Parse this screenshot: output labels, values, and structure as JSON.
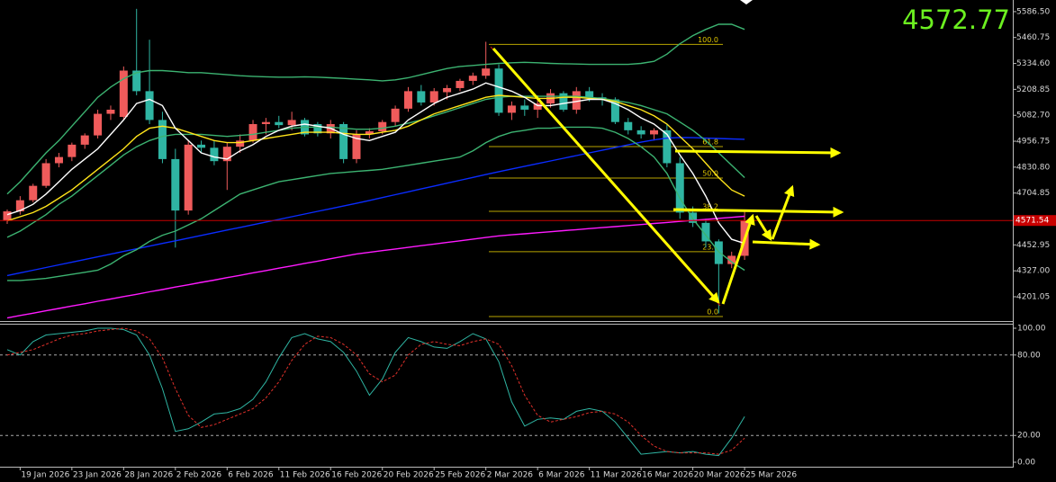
{
  "chart_data": {
    "type": "candlestick",
    "categories": [
      null,
      "19 Jan 2026",
      null,
      null,
      null,
      "23 Jan 2026",
      null,
      null,
      null,
      "28 Jan 2026",
      null,
      null,
      null,
      "2 Feb 2026",
      null,
      null,
      null,
      "6 Feb 2026",
      null,
      null,
      null,
      "11 Feb 2026",
      null,
      null,
      null,
      "16 Feb 2026",
      null,
      null,
      null,
      "20 Feb 2026",
      null,
      null,
      null,
      "25 Feb 2026",
      null,
      null,
      null,
      "2 Mar 2026",
      null,
      null,
      null,
      "6 Mar 2026",
      null,
      null,
      null,
      "11 Mar 2026",
      null,
      null,
      null,
      "16 Mar 2026",
      null,
      null,
      null,
      "20 Mar 2026",
      null,
      null,
      null,
      "25 Mar 2026"
    ],
    "open": [
      4572,
      4616,
      4670,
      4740,
      4850,
      4880,
      4940,
      4985,
      5090,
      5075,
      5300,
      5200,
      5060,
      4870,
      4620,
      4940,
      4925,
      4860,
      4930,
      4960,
      5040,
      5050,
      5035,
      5060,
      5040,
      4995,
      5040,
      4870,
      4990,
      5005,
      5050,
      5115,
      5200,
      5145,
      5195,
      5215,
      5250,
      5275,
      5310,
      5095,
      5130,
      5110,
      5140,
      5190,
      5110,
      5200,
      5170,
      5160,
      5050,
      5010,
      4990,
      5010,
      4850,
      4610,
      4560,
      4470,
      4360,
      4400
    ],
    "high": [
      4625,
      4690,
      4750,
      4870,
      4900,
      4950,
      4995,
      5110,
      5130,
      5320,
      5600,
      5450,
      5100,
      4920,
      4960,
      4960,
      4960,
      4950,
      4990,
      5060,
      5070,
      5080,
      5100,
      5070,
      5050,
      5060,
      5050,
      5010,
      5020,
      5060,
      5130,
      5220,
      5230,
      5215,
      5230,
      5260,
      5290,
      5440,
      5330,
      5150,
      5160,
      5180,
      5210,
      5200,
      5220,
      5220,
      5190,
      5170,
      5070,
      5030,
      5020,
      5040,
      4880,
      4640,
      4580,
      4480,
      4420,
      4620
    ],
    "low": [
      4555,
      4600,
      4660,
      4730,
      4830,
      4860,
      4920,
      4970,
      5060,
      5060,
      5180,
      5040,
      4850,
      4440,
      4600,
      4900,
      4840,
      4720,
      4900,
      4950,
      4990,
      5020,
      5010,
      4980,
      4980,
      4970,
      4850,
      4850,
      4970,
      4990,
      5030,
      5100,
      5130,
      5130,
      5160,
      5200,
      5230,
      5260,
      5080,
      5060,
      5080,
      5070,
      5120,
      5100,
      5090,
      5150,
      5130,
      5040,
      4990,
      4970,
      4960,
      4830,
      4580,
      4540,
      4440,
      4120,
      4340,
      4380
    ],
    "close": [
      4616,
      4670,
      4740,
      4850,
      4880,
      4940,
      4985,
      5090,
      5110,
      5300,
      5200,
      5060,
      4870,
      4620,
      4940,
      4925,
      4860,
      4930,
      4960,
      5040,
      5050,
      5035,
      5060,
      4990,
      4995,
      5040,
      4870,
      4990,
      5005,
      5050,
      5115,
      5200,
      5145,
      5200,
      5215,
      5250,
      5275,
      5310,
      5095,
      5130,
      5110,
      5140,
      5190,
      5110,
      5200,
      5170,
      5160,
      5050,
      5010,
      4990,
      5010,
      4850,
      4610,
      4560,
      4470,
      4360,
      4400,
      4572.77
    ],
    "up_color": "#ef5b5b",
    "down_color": "#2fb5a3",
    "overlays": [
      {
        "color": "#0a2cff",
        "values": [
          4304,
          4317,
          4330,
          4343,
          4356,
          4369,
          4382,
          4395,
          4408,
          4421,
          4434,
          4447,
          4460,
          4473,
          4486,
          4499,
          4512,
          4525,
          4538,
          4551,
          4564,
          4577,
          4590,
          4603,
          4616,
          4629,
          4642,
          4655,
          4669,
          4683,
          4697,
          4711,
          4725,
          4739,
          4753,
          4767,
          4781,
          4795,
          4809,
          4822,
          4835,
          4848,
          4861,
          4874,
          4887,
          4900,
          4913,
          4926,
          4939,
          4952,
          4963,
          4972,
          4975,
          4974,
          4972,
          4970,
          4968,
          4966
        ]
      },
      {
        "color": "#ff1aff",
        "values": [
          4098,
          4110,
          4121,
          4133,
          4144,
          4156,
          4167,
          4179,
          4190,
          4202,
          4213,
          4225,
          4236,
          4248,
          4259,
          4271,
          4282,
          4294,
          4305,
          4317,
          4328,
          4340,
          4351,
          4363,
          4374,
          4386,
          4397,
          4409,
          4417,
          4425,
          4433,
          4441,
          4449,
          4457,
          4465,
          4473,
          4481,
          4489,
          4497,
          4502,
          4507,
          4512,
          4517,
          4522,
          4527,
          4532,
          4537,
          4542,
          4547,
          4552,
          4557,
          4562,
          4567,
          4572,
          4577,
          4582,
          4587,
          4592
        ]
      },
      {
        "color": "#3cb371",
        "values": [
          4700,
          4760,
          4830,
          4900,
          4960,
          5030,
          5100,
          5170,
          5220,
          5260,
          5290,
          5300,
          5300,
          5295,
          5290,
          5290,
          5285,
          5280,
          5275,
          5272,
          5270,
          5268,
          5268,
          5270,
          5268,
          5265,
          5262,
          5258,
          5255,
          5250,
          5255,
          5265,
          5280,
          5295,
          5310,
          5320,
          5325,
          5330,
          5335,
          5338,
          5340,
          5338,
          5335,
          5333,
          5332,
          5330,
          5330,
          5330,
          5330,
          5335,
          5345,
          5380,
          5430,
          5470,
          5500,
          5525,
          5525,
          5500
        ]
      },
      {
        "color": "#3cb371",
        "values": [
          4490,
          4520,
          4560,
          4600,
          4650,
          4690,
          4740,
          4790,
          4840,
          4890,
          4930,
          4960,
          4980,
          4990,
          4990,
          4990,
          4985,
          4980,
          4985,
          4990,
          5000,
          5010,
          5020,
          5025,
          5025,
          5025,
          5020,
          5015,
          5015,
          5020,
          5030,
          5045,
          5060,
          5080,
          5100,
          5120,
          5140,
          5160,
          5170,
          5175,
          5175,
          5175,
          5175,
          5175,
          5175,
          5170,
          5165,
          5155,
          5145,
          5130,
          5110,
          5090,
          5050,
          5010,
          4960,
          4900,
          4840,
          4780
        ]
      },
      {
        "color": "#3cb371",
        "values": [
          4280,
          4280,
          4285,
          4290,
          4300,
          4310,
          4320,
          4330,
          4360,
          4400,
          4430,
          4470,
          4500,
          4520,
          4550,
          4580,
          4620,
          4660,
          4700,
          4720,
          4740,
          4760,
          4770,
          4780,
          4790,
          4800,
          4805,
          4810,
          4815,
          4820,
          4830,
          4840,
          4850,
          4860,
          4870,
          4880,
          4910,
          4950,
          4980,
          5000,
          5010,
          5020,
          5020,
          5025,
          5025,
          5025,
          5020,
          5000,
          4970,
          4930,
          4880,
          4800,
          4680,
          4580,
          4500,
          4420,
          4370,
          4330
        ]
      },
      {
        "color": "#ffe41a",
        "values": [
          4570,
          4590,
          4610,
          4640,
          4680,
          4720,
          4770,
          4820,
          4870,
          4920,
          4980,
          5020,
          5030,
          5020,
          5000,
          4980,
          4960,
          4950,
          4950,
          4960,
          4970,
          4980,
          4990,
          5000,
          5000,
          5000,
          4995,
          4990,
          4990,
          5000,
          5010,
          5030,
          5060,
          5090,
          5110,
          5130,
          5150,
          5170,
          5180,
          5175,
          5170,
          5165,
          5165,
          5170,
          5170,
          5165,
          5160,
          5150,
          5130,
          5110,
          5080,
          5040,
          4980,
          4920,
          4850,
          4780,
          4720,
          4690
        ]
      },
      {
        "color": "#ffffff",
        "values": [
          4600,
          4620,
          4650,
          4700,
          4760,
          4820,
          4870,
          4920,
          4990,
          5060,
          5140,
          5160,
          5130,
          5020,
          4960,
          4900,
          4880,
          4870,
          4910,
          4940,
          4980,
          5010,
          5030,
          5040,
          5030,
          5020,
          4990,
          4970,
          4960,
          4980,
          5000,
          5060,
          5100,
          5140,
          5170,
          5190,
          5210,
          5240,
          5220,
          5200,
          5170,
          5130,
          5130,
          5140,
          5150,
          5160,
          5160,
          5140,
          5110,
          5070,
          5040,
          4990,
          4890,
          4800,
          4690,
          4560,
          4480,
          4460
        ]
      }
    ],
    "ylim": [
      4083,
      5643
    ],
    "yticks": [
      {
        "value": 5586.5,
        "label": "5586.50"
      },
      5460.75,
      {
        "value": 5334.6,
        "label": "5334.60"
      },
      5208.85,
      {
        "value": 5082.7,
        "label": "5082.70"
      },
      4956.75,
      {
        "value": 4830.8,
        "label": "4830.80"
      },
      4704.85,
      4452.95,
      {
        "value": 4327,
        "label": "4327.00"
      },
      4201.05
    ],
    "price_line": 4571.54,
    "price_line_color": "#c80000",
    "last_price": 4572.77,
    "fibonacci": [
      {
        "text": "100.0",
        "price": 5427
      },
      {
        "text": "61.8",
        "price": 4931
      },
      {
        "text": "50.0",
        "price": 4778
      },
      {
        "text": "38.2",
        "price": 4616
      },
      {
        "text": "23.6",
        "price": 4420
      },
      {
        "text": "0.0",
        "price": 4105
      }
    ],
    "oscillator": {
      "ylim": [
        0,
        100
      ],
      "yticks": [
        {
          "value": 100,
          "label": "100.00"
        },
        {
          "value": 80,
          "label": "80.00"
        },
        {
          "value": 20,
          "label": "20.00"
        },
        {
          "value": 0,
          "label": "0.00"
        }
      ],
      "series": [
        {
          "color": "#2fb5a3",
          "style": "solid",
          "values": [
            84,
            80,
            90,
            95,
            96,
            97,
            98,
            100,
            100,
            99,
            95,
            80,
            55,
            23,
            25,
            30,
            36,
            37,
            40,
            47,
            60,
            78,
            93,
            96,
            92,
            90,
            82,
            68,
            50,
            62,
            82,
            93,
            90,
            86,
            85,
            90,
            96,
            92,
            75,
            45,
            27,
            32,
            33,
            32,
            38,
            40,
            38,
            30,
            18,
            6,
            7,
            8,
            7,
            8,
            6,
            5,
            18,
            34
          ]
        },
        {
          "color": "#e0302a",
          "style": "dashed",
          "values": [
            80,
            82,
            84,
            88,
            92,
            95,
            96,
            98,
            99,
            100,
            98,
            92,
            78,
            55,
            35,
            26,
            28,
            32,
            36,
            40,
            48,
            60,
            76,
            88,
            94,
            93,
            88,
            80,
            66,
            60,
            65,
            80,
            88,
            90,
            88,
            87,
            90,
            92,
            88,
            72,
            50,
            35,
            30,
            32,
            34,
            37,
            38,
            36,
            30,
            20,
            12,
            8,
            7,
            7,
            7,
            6,
            9,
            18
          ]
        }
      ]
    }
  }
}
